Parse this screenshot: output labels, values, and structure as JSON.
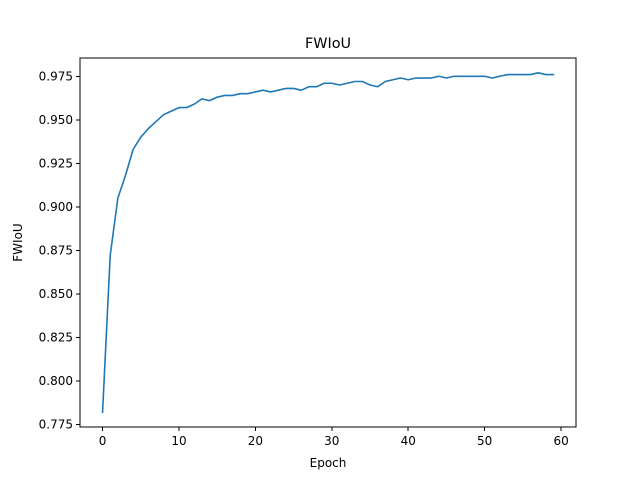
{
  "chart_data": {
    "type": "line",
    "title": "FWIoU",
    "xlabel": "Epoch",
    "ylabel": "FWIoU",
    "xlim": [
      -2.95,
      61.95
    ],
    "ylim": [
      0.7735,
      0.9855
    ],
    "xticks": [
      0,
      10,
      20,
      30,
      40,
      50,
      60
    ],
    "yticks": [
      0.775,
      0.8,
      0.825,
      0.85,
      0.875,
      0.9,
      0.925,
      0.95,
      0.975
    ],
    "ytick_labels": [
      "0.775",
      "0.800",
      "0.825",
      "0.850",
      "0.875",
      "0.900",
      "0.925",
      "0.950",
      "0.975"
    ],
    "grid": false,
    "series": [
      {
        "color": "#1f77b4",
        "x": [
          0,
          1,
          2,
          3,
          4,
          5,
          6,
          7,
          8,
          9,
          10,
          11,
          12,
          13,
          14,
          15,
          16,
          17,
          18,
          19,
          20,
          21,
          22,
          23,
          24,
          25,
          26,
          27,
          28,
          29,
          30,
          31,
          32,
          33,
          34,
          35,
          36,
          37,
          38,
          39,
          40,
          41,
          42,
          43,
          44,
          45,
          46,
          47,
          48,
          49,
          50,
          51,
          52,
          53,
          54,
          55,
          56,
          57,
          58,
          59
        ],
        "values": [
          0.782,
          0.872,
          0.905,
          0.918,
          0.933,
          0.94,
          0.945,
          0.949,
          0.953,
          0.955,
          0.957,
          0.957,
          0.959,
          0.962,
          0.961,
          0.963,
          0.964,
          0.964,
          0.965,
          0.965,
          0.966,
          0.967,
          0.966,
          0.967,
          0.968,
          0.968,
          0.967,
          0.969,
          0.969,
          0.971,
          0.971,
          0.97,
          0.971,
          0.972,
          0.972,
          0.97,
          0.969,
          0.972,
          0.973,
          0.974,
          0.973,
          0.974,
          0.974,
          0.974,
          0.975,
          0.974,
          0.975,
          0.975,
          0.975,
          0.975,
          0.975,
          0.974,
          0.975,
          0.976,
          0.976,
          0.976,
          0.976,
          0.977,
          0.976,
          0.976
        ]
      }
    ]
  }
}
